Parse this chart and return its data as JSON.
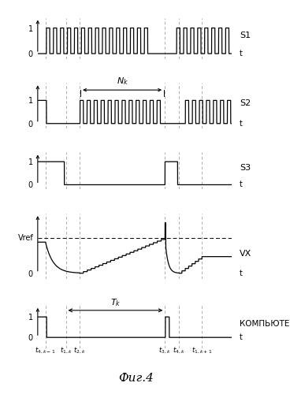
{
  "background_color": "#ffffff",
  "signal_color": "#000000",
  "dashed_color": "#999999",
  "labels": {
    "S1": "S1",
    "S2": "S2",
    "S3": "S3",
    "VX": "VX",
    "Vref": "Vref",
    "computer": "КОМПЬЮТЕР",
    "t": "t",
    "fig": "Фиг.4"
  },
  "time_points": {
    "t4k_1": 0.04,
    "t1k": 0.145,
    "t2k": 0.215,
    "t3k": 0.655,
    "t4k": 0.725,
    "t1k1": 0.845
  },
  "vref": 0.7,
  "duty": 0.017,
  "period": 0.036,
  "total_time": 1.0
}
